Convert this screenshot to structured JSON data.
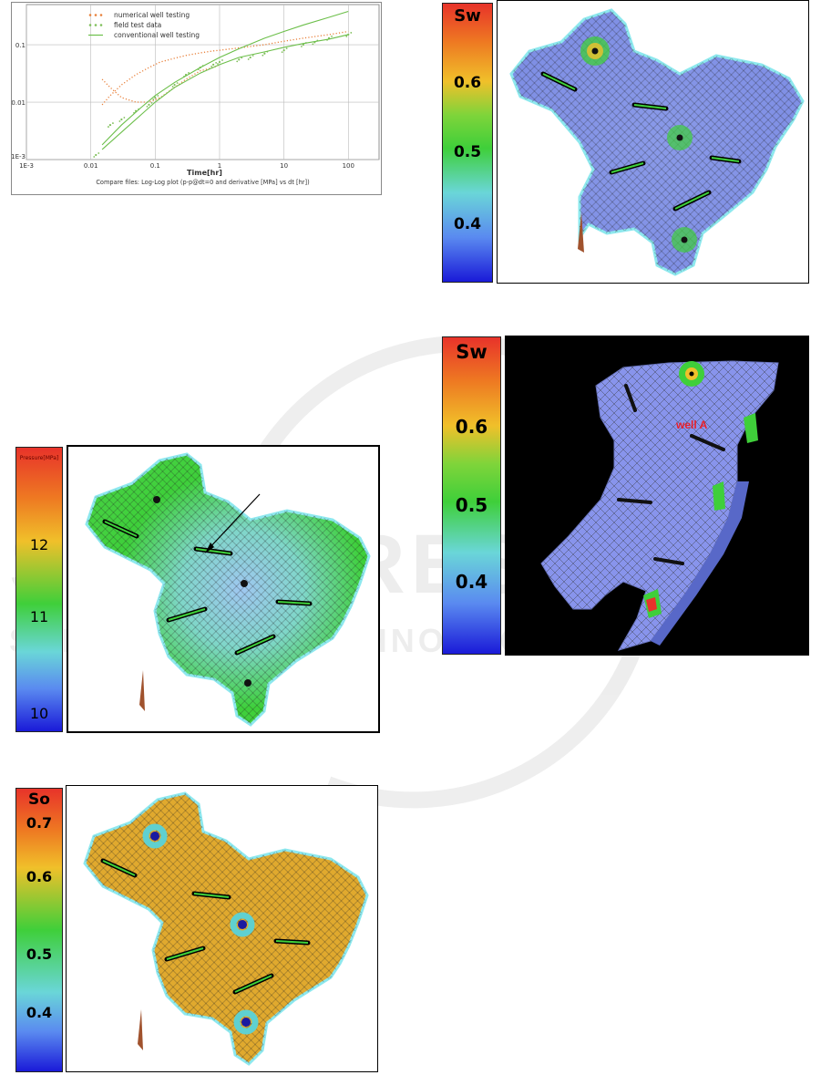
{
  "chart": {
    "legend": [
      "numerical well testing",
      "field test data",
      "conventional well testing"
    ],
    "x_ticks": [
      "1E-3",
      "0.01",
      "0.1",
      "1",
      "10",
      "100"
    ],
    "y_ticks": [
      "1E-3",
      "0.01",
      "0.1"
    ],
    "xlabel": "Time[hr]",
    "caption": "Compare files: Log-Log plot (p-p@dt=0 and derivative [MPa] vs dt [hr])"
  },
  "pressure_panel": {
    "legend_title": "Pressure[MPa]",
    "legend_labels": [
      "12",
      "11",
      "10"
    ]
  },
  "so_panel": {
    "legend_title": "So",
    "legend_labels": [
      "0.7",
      "0.6",
      "0.5",
      "0.4"
    ]
  },
  "sw_top_panel": {
    "legend_title": "Sw",
    "legend_labels": [
      "0.6",
      "0.5",
      "0.4"
    ]
  },
  "sw_3d_panel": {
    "legend_title": "Sw",
    "legend_labels": [
      "0.6",
      "0.5",
      "0.4"
    ],
    "well_label": "well A"
  },
  "chart_data": {
    "type": "scatter",
    "xlabel": "Time[hr]",
    "ylabel": "",
    "xscale": "log",
    "yscale": "log",
    "xlim": [
      0.001,
      300
    ],
    "ylim": [
      0.001,
      0.5
    ],
    "grid": true,
    "legend_position": "top-left",
    "series": [
      {
        "name": "numerical well testing",
        "style": "dotted",
        "color": "#e8803a",
        "x": [
          0.015,
          0.02,
          0.03,
          0.05,
          0.08,
          0.12,
          0.2,
          0.3,
          0.5,
          0.8,
          1,
          2,
          5,
          10,
          20,
          50,
          100
        ],
        "y": [
          0.009,
          0.013,
          0.02,
          0.03,
          0.04,
          0.05,
          0.058,
          0.065,
          0.072,
          0.078,
          0.08,
          0.088,
          0.1,
          0.115,
          0.13,
          0.15,
          0.17
        ]
      },
      {
        "name": "numerical well testing",
        "style": "dotted",
        "color": "#e8803a",
        "x": [
          0.015,
          0.02,
          0.03,
          0.05,
          0.08,
          0.12,
          0.2,
          0.3,
          0.5,
          0.8,
          1
        ],
        "y": [
          0.025,
          0.018,
          0.012,
          0.01,
          0.01,
          0.012,
          0.018,
          0.025,
          0.035,
          0.04,
          0.045
        ]
      },
      {
        "name": "field test data",
        "style": "markers",
        "color": "#7fbf5a",
        "x": [
          0.012,
          0.02,
          0.03,
          0.05,
          0.08,
          0.1,
          0.2,
          0.3,
          0.5,
          0.8,
          1,
          2,
          3,
          5,
          10,
          20,
          30,
          50,
          100
        ],
        "y": [
          0.0012,
          0.004,
          0.005,
          0.007,
          0.009,
          0.012,
          0.02,
          0.03,
          0.04,
          0.045,
          0.05,
          0.055,
          0.06,
          0.07,
          0.08,
          0.1,
          0.11,
          0.13,
          0.15
        ]
      },
      {
        "name": "conventional well testing",
        "style": "line",
        "color": "#6cbf4a",
        "x": [
          0.015,
          0.03,
          0.06,
          0.1,
          0.2,
          0.5,
          1,
          2,
          5,
          10,
          20,
          50,
          100
        ],
        "y": [
          0.0018,
          0.004,
          0.008,
          0.013,
          0.022,
          0.04,
          0.06,
          0.085,
          0.13,
          0.17,
          0.22,
          0.3,
          0.38
        ]
      },
      {
        "name": "conventional well testing",
        "style": "line",
        "color": "#6cbf4a",
        "x": [
          0.015,
          0.03,
          0.06,
          0.1,
          0.2,
          0.5,
          1,
          2,
          5,
          10,
          20,
          50,
          100
        ],
        "y": [
          0.0015,
          0.003,
          0.006,
          0.01,
          0.018,
          0.032,
          0.045,
          0.06,
          0.075,
          0.09,
          0.105,
          0.125,
          0.15
        ]
      }
    ]
  }
}
